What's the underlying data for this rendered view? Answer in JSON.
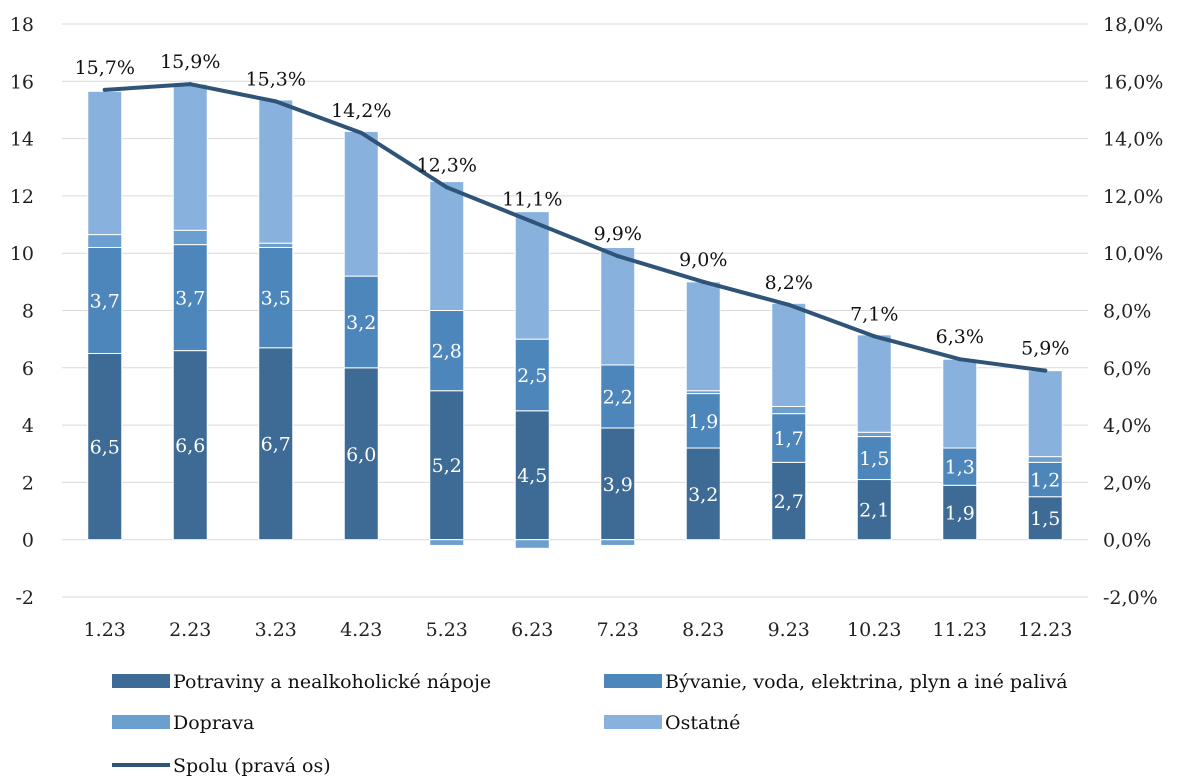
{
  "chart_data": {
    "type": "bar",
    "stacked": true,
    "categories": [
      "1.23",
      "2.23",
      "3.23",
      "4.23",
      "5.23",
      "6.23",
      "7.23",
      "8.23",
      "9.23",
      "10.23",
      "11.23",
      "12.23"
    ],
    "series": [
      {
        "name": "Potraviny a nealkoholické nápoje",
        "color": "#3d6b96",
        "values": [
          6.5,
          6.6,
          6.7,
          6.0,
          5.2,
          4.5,
          3.9,
          3.2,
          2.7,
          2.1,
          1.9,
          1.5
        ],
        "labels": [
          "6,5",
          "6,6",
          "6,7",
          "6,0",
          "5,2",
          "4,5",
          "3,9",
          "3,2",
          "2,7",
          "2,1",
          "1,9",
          "1,5"
        ]
      },
      {
        "name": "Bývanie, voda, elektrina, plyn a iné palivá",
        "color": "#4d86ba",
        "values": [
          3.7,
          3.7,
          3.5,
          3.2,
          2.8,
          2.5,
          2.2,
          1.9,
          1.7,
          1.5,
          1.3,
          1.2
        ],
        "labels": [
          "3,7",
          "3,7",
          "3,5",
          "3,2",
          "2,8",
          "2,5",
          "2,2",
          "1,9",
          "1,7",
          "1,5",
          "1,3",
          "1,2"
        ]
      },
      {
        "name": "Doprava",
        "color": "#6a9fd0",
        "values": [
          0.45,
          0.5,
          0.15,
          0.0,
          -0.2,
          -0.3,
          -0.2,
          0.1,
          0.25,
          0.15,
          0.0,
          0.2
        ]
      },
      {
        "name": "Ostatné",
        "color": "#88b2dd",
        "values": [
          5.0,
          5.1,
          5.0,
          5.05,
          4.5,
          4.45,
          4.1,
          3.8,
          3.6,
          3.4,
          3.1,
          3.0
        ]
      }
    ],
    "line": {
      "name": "Spolu (pravá os)",
      "color": "#2f5478",
      "values": [
        15.7,
        15.9,
        15.3,
        14.2,
        12.3,
        11.1,
        9.9,
        9.0,
        8.2,
        7.1,
        6.3,
        5.9
      ],
      "labels": [
        "15,7%",
        "15,9%",
        "15,3%",
        "14,2%",
        "12,3%",
        "11,1%",
        "9,9%",
        "9,0%",
        "8,2%",
        "7,1%",
        "6,3%",
        "5,9%"
      ]
    },
    "ylim": [
      -2,
      18
    ],
    "y_ticks": [
      -2,
      0,
      2,
      4,
      6,
      8,
      10,
      12,
      14,
      16,
      18
    ],
    "y_tick_labels": [
      "-2",
      "0",
      "2",
      "4",
      "6",
      "8",
      "10",
      "12",
      "14",
      "16",
      "18"
    ],
    "y2lim": [
      -2.0,
      18.0
    ],
    "y2_tick_labels": [
      "-2,0%",
      "0,0%",
      "2,0%",
      "4,0%",
      "6,0%",
      "8,0%",
      "10,0%",
      "12,0%",
      "14,0%",
      "16,0%",
      "18,0%"
    ],
    "grid": true,
    "legend_position": "bottom"
  }
}
